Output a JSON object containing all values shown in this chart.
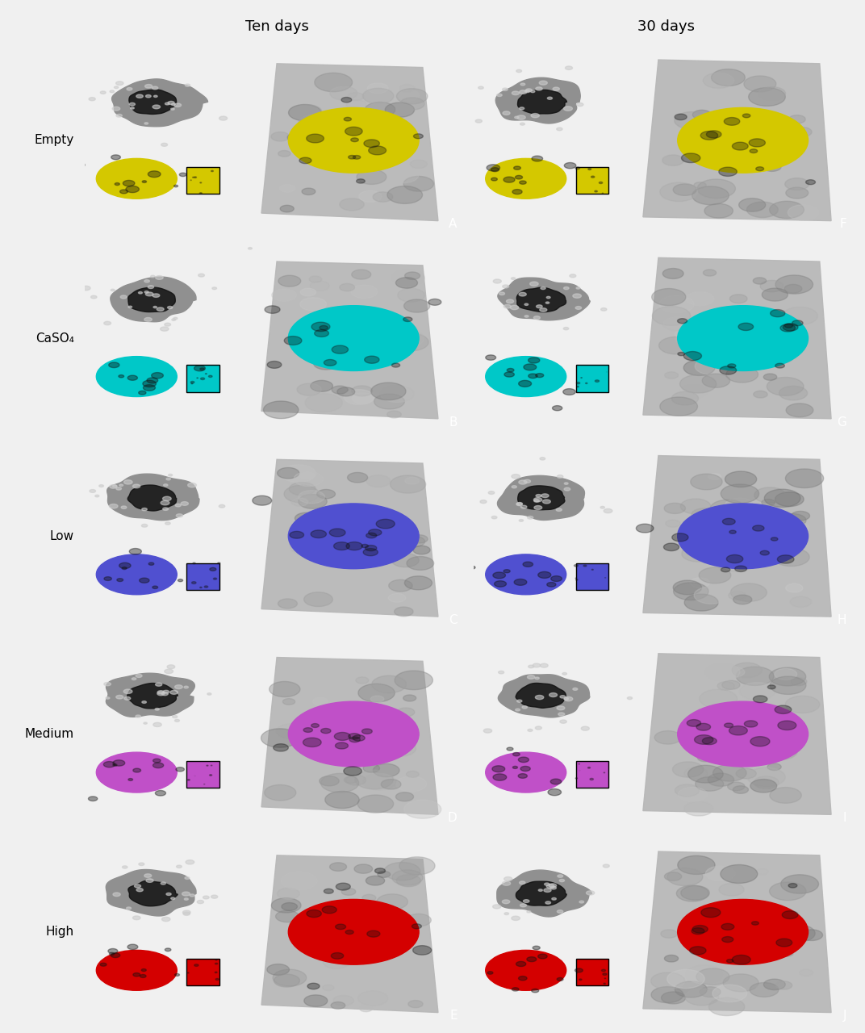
{
  "title_left": "Ten days",
  "title_right": "30 days",
  "row_labels": [
    "Empty",
    "CaSO₄",
    "Low",
    "Medium",
    "High"
  ],
  "panel_labels_left": [
    "A",
    "B",
    "C",
    "D",
    "E"
  ],
  "panel_labels_right": [
    "F",
    "G",
    "H",
    "I",
    "J"
  ],
  "colors": [
    "#d4c800",
    "#00c8c8",
    "#5050d0",
    "#c050c8",
    "#d40000"
  ],
  "bg_color": "#000000",
  "outer_bg": "#f0f0f0",
  "label_color": "#000000",
  "panel_label_color": "#ffffff",
  "title_fontsize": 13,
  "row_label_fontsize": 11,
  "panel_label_fontsize": 11
}
